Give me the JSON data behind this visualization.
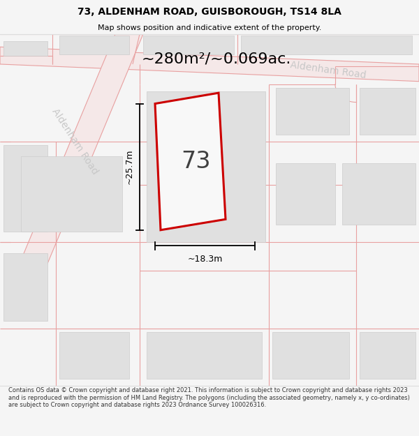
{
  "title_line1": "73, ALDENHAM ROAD, GUISBOROUGH, TS14 8LA",
  "title_line2": "Map shows position and indicative extent of the property.",
  "area_text": "~280m²/~0.069ac.",
  "label_73": "73",
  "dim_height": "~25.7m",
  "dim_width": "~18.3m",
  "road_label_top": "Aldenham Road",
  "road_label_left": "Aldenham Road",
  "footer_text": "Contains OS data © Crown copyright and database right 2021. This information is subject to Crown copyright and database rights 2023 and is reproduced with the permission of HM Land Registry. The polygons (including the associated geometry, namely x, y co-ordinates) are subject to Crown copyright and database rights 2023 Ordnance Survey 100026316.",
  "bg_color": "#f5f5f5",
  "map_bg": "#ffffff",
  "prop_line_color": "#e8a0a0",
  "road_label_color": "#c8c8c8",
  "plot_outline_color": "#cc0000",
  "building_fill": "#e0e0e0",
  "building_edge": "#cccccc",
  "dim_line_color": "#000000",
  "text_color": "#000000",
  "footer_color": "#333333",
  "area_fontsize": 16,
  "title_fontsize": 10,
  "subtitle_fontsize": 8,
  "label_fontsize": 24,
  "dim_fontsize": 9,
  "road_label_fontsize": 10,
  "footer_fontsize": 6.0
}
